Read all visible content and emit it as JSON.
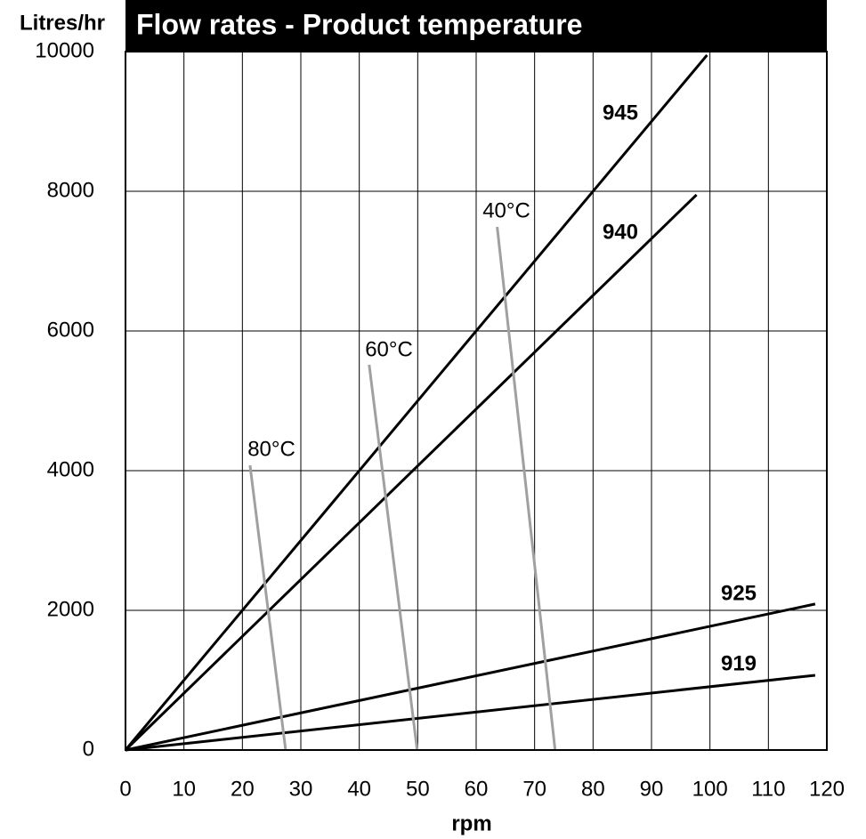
{
  "chart_data": {
    "type": "line",
    "title": "Flow rates - Product temperature",
    "y_label": "Litres/hr",
    "x_label": "rpm",
    "xlim": [
      0,
      120
    ],
    "xticks": [
      0,
      10,
      20,
      30,
      40,
      50,
      60,
      70,
      80,
      90,
      100,
      110,
      120
    ],
    "ylim": [
      0,
      10000
    ],
    "yticks": [
      0,
      2000,
      4000,
      6000,
      8000,
      10000
    ],
    "grid": true,
    "series": [
      {
        "name": "945",
        "color": "#000000",
        "x": [
          0,
          99.5
        ],
        "values": [
          0,
          9950
        ]
      },
      {
        "name": "940",
        "color": "#000000",
        "x": [
          0,
          97.7
        ],
        "values": [
          0,
          7950
        ]
      },
      {
        "name": "925",
        "color": "#000000",
        "x": [
          0,
          118
        ],
        "values": [
          0,
          2090
        ]
      },
      {
        "name": "919",
        "color": "#000000",
        "x": [
          0,
          118
        ],
        "values": [
          0,
          1070
        ]
      },
      {
        "name": "80°C",
        "color": "#a0a0a0",
        "x": [
          21.3,
          27.4
        ],
        "values": [
          4076,
          0
        ]
      },
      {
        "name": "60°C",
        "color": "#a0a0a0",
        "x": [
          41.7,
          49.9
        ],
        "values": [
          5516,
          0
        ]
      },
      {
        "name": "40°C",
        "color": "#a0a0a0",
        "x": [
          63.6,
          73.5
        ],
        "values": [
          7490,
          0
        ]
      }
    ]
  }
}
